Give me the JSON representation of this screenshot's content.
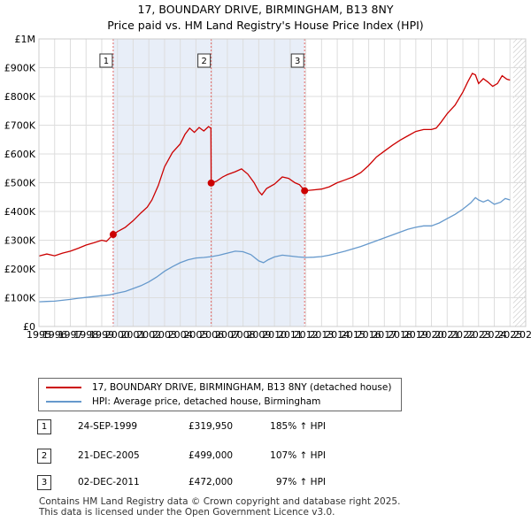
{
  "title_line1": "17, BOUNDARY DRIVE, BIRMINGHAM, B13 8NY",
  "title_line2": "Price paid vs. HM Land Registry's House Price Index (HPI)",
  "chart_data": {
    "type": "line",
    "xlim": [
      1995,
      2026
    ],
    "ylim": [
      0,
      1000000
    ],
    "x_ticks": [
      "1995",
      "1996",
      "1997",
      "1998",
      "1999",
      "2000",
      "2001",
      "2002",
      "2003",
      "2004",
      "2005",
      "2006",
      "2007",
      "2008",
      "2009",
      "2010",
      "2011",
      "2012",
      "2013",
      "2014",
      "2015",
      "2016",
      "2017",
      "2018",
      "2019",
      "2020",
      "2021",
      "2022",
      "2023",
      "2024",
      "2025",
      "2026"
    ],
    "y_ticks": [
      {
        "value": 0,
        "label": "£0"
      },
      {
        "value": 100000,
        "label": "£100K"
      },
      {
        "value": 200000,
        "label": "£200K"
      },
      {
        "value": 300000,
        "label": "£300K"
      },
      {
        "value": 400000,
        "label": "£400K"
      },
      {
        "value": 500000,
        "label": "£500K"
      },
      {
        "value": 600000,
        "label": "£600K"
      },
      {
        "value": 700000,
        "label": "£700K"
      },
      {
        "value": 800000,
        "label": "£800K"
      },
      {
        "value": 900000,
        "label": "£900K"
      },
      {
        "value": 1000000,
        "label": "£1M"
      }
    ],
    "grid": true,
    "shaded_region": [
      1999.73,
      2011.92
    ],
    "future_hatch_start": 2025.2,
    "series": [
      {
        "name": "17, BOUNDARY DRIVE, BIRMINGHAM, B13 8NY (detached house)",
        "color": "#cc0000",
        "points": [
          [
            1995.0,
            245000
          ],
          [
            1995.5,
            252000
          ],
          [
            1996.0,
            246000
          ],
          [
            1996.5,
            255000
          ],
          [
            1997.0,
            262000
          ],
          [
            1997.5,
            272000
          ],
          [
            1998.0,
            283000
          ],
          [
            1998.5,
            291000
          ],
          [
            1999.0,
            300000
          ],
          [
            1999.3,
            296000
          ],
          [
            1999.73,
            319950
          ],
          [
            2000.0,
            330000
          ],
          [
            2000.5,
            345000
          ],
          [
            2001.0,
            368000
          ],
          [
            2001.5,
            395000
          ],
          [
            2001.9,
            415000
          ],
          [
            2002.2,
            440000
          ],
          [
            2002.6,
            490000
          ],
          [
            2003.0,
            555000
          ],
          [
            2003.5,
            605000
          ],
          [
            2004.0,
            635000
          ],
          [
            2004.3,
            668000
          ],
          [
            2004.6,
            690000
          ],
          [
            2004.9,
            675000
          ],
          [
            2005.2,
            692000
          ],
          [
            2005.5,
            680000
          ],
          [
            2005.8,
            695000
          ],
          [
            2005.95,
            690000
          ],
          [
            2005.97,
            499000
          ],
          [
            2006.3,
            505000
          ],
          [
            2006.7,
            520000
          ],
          [
            2007.0,
            528000
          ],
          [
            2007.5,
            538000
          ],
          [
            2007.9,
            548000
          ],
          [
            2008.3,
            530000
          ],
          [
            2008.7,
            500000
          ],
          [
            2009.0,
            470000
          ],
          [
            2009.2,
            458000
          ],
          [
            2009.5,
            480000
          ],
          [
            2010.0,
            495000
          ],
          [
            2010.5,
            520000
          ],
          [
            2010.9,
            515000
          ],
          [
            2011.3,
            500000
          ],
          [
            2011.6,
            493000
          ],
          [
            2011.92,
            472000
          ],
          [
            2012.5,
            475000
          ],
          [
            2013.0,
            478000
          ],
          [
            2013.5,
            486000
          ],
          [
            2014.0,
            500000
          ],
          [
            2014.5,
            510000
          ],
          [
            2015.0,
            520000
          ],
          [
            2015.5,
            535000
          ],
          [
            2016.0,
            560000
          ],
          [
            2016.5,
            590000
          ],
          [
            2017.0,
            610000
          ],
          [
            2017.5,
            630000
          ],
          [
            2018.0,
            648000
          ],
          [
            2018.5,
            663000
          ],
          [
            2019.0,
            678000
          ],
          [
            2019.5,
            685000
          ],
          [
            2020.0,
            685000
          ],
          [
            2020.3,
            690000
          ],
          [
            2020.6,
            710000
          ],
          [
            2021.0,
            740000
          ],
          [
            2021.5,
            770000
          ],
          [
            2022.0,
            815000
          ],
          [
            2022.3,
            850000
          ],
          [
            2022.6,
            880000
          ],
          [
            2022.8,
            875000
          ],
          [
            2023.0,
            845000
          ],
          [
            2023.3,
            862000
          ],
          [
            2023.6,
            850000
          ],
          [
            2023.9,
            835000
          ],
          [
            2024.2,
            845000
          ],
          [
            2024.5,
            872000
          ],
          [
            2024.8,
            860000
          ],
          [
            2025.0,
            857000
          ]
        ]
      },
      {
        "name": "HPI: Average price, detached house, Birmingham",
        "color": "#6699cc",
        "points": [
          [
            1995.0,
            86000
          ],
          [
            1995.5,
            87000
          ],
          [
            1996.0,
            88000
          ],
          [
            1996.5,
            91000
          ],
          [
            1997.0,
            94000
          ],
          [
            1997.5,
            98000
          ],
          [
            1998.0,
            101000
          ],
          [
            1998.5,
            104000
          ],
          [
            1999.0,
            107000
          ],
          [
            1999.5,
            110000
          ],
          [
            2000.0,
            116000
          ],
          [
            2000.5,
            122000
          ],
          [
            2001.0,
            132000
          ],
          [
            2001.5,
            142000
          ],
          [
            2002.0,
            155000
          ],
          [
            2002.5,
            172000
          ],
          [
            2003.0,
            192000
          ],
          [
            2003.5,
            208000
          ],
          [
            2004.0,
            222000
          ],
          [
            2004.5,
            232000
          ],
          [
            2005.0,
            238000
          ],
          [
            2005.5,
            240000
          ],
          [
            2006.0,
            243000
          ],
          [
            2006.5,
            248000
          ],
          [
            2007.0,
            255000
          ],
          [
            2007.5,
            262000
          ],
          [
            2008.0,
            260000
          ],
          [
            2008.5,
            250000
          ],
          [
            2009.0,
            228000
          ],
          [
            2009.3,
            222000
          ],
          [
            2009.6,
            232000
          ],
          [
            2010.0,
            242000
          ],
          [
            2010.5,
            248000
          ],
          [
            2011.0,
            245000
          ],
          [
            2011.5,
            242000
          ],
          [
            2012.0,
            240000
          ],
          [
            2012.5,
            241000
          ],
          [
            2013.0,
            243000
          ],
          [
            2013.5,
            248000
          ],
          [
            2014.0,
            255000
          ],
          [
            2014.5,
            262000
          ],
          [
            2015.0,
            270000
          ],
          [
            2015.5,
            278000
          ],
          [
            2016.0,
            288000
          ],
          [
            2016.5,
            298000
          ],
          [
            2017.0,
            308000
          ],
          [
            2017.5,
            318000
          ],
          [
            2018.0,
            328000
          ],
          [
            2018.5,
            338000
          ],
          [
            2019.0,
            345000
          ],
          [
            2019.5,
            350000
          ],
          [
            2020.0,
            350000
          ],
          [
            2020.5,
            360000
          ],
          [
            2021.0,
            375000
          ],
          [
            2021.5,
            390000
          ],
          [
            2022.0,
            408000
          ],
          [
            2022.5,
            430000
          ],
          [
            2022.8,
            448000
          ],
          [
            2023.0,
            440000
          ],
          [
            2023.3,
            433000
          ],
          [
            2023.6,
            440000
          ],
          [
            2024.0,
            425000
          ],
          [
            2024.4,
            432000
          ],
          [
            2024.7,
            445000
          ],
          [
            2025.0,
            440000
          ]
        ]
      }
    ],
    "sales": [
      {
        "label": "1",
        "x": 1999.73,
        "value": 319950
      },
      {
        "label": "2",
        "x": 2005.97,
        "value": 499000
      },
      {
        "label": "3",
        "x": 2011.92,
        "value": 472000
      }
    ]
  },
  "legend": {
    "property_label": "17, BOUNDARY DRIVE, BIRMINGHAM, B13 8NY (detached house)",
    "hpi_label": "HPI: Average price, detached house, Birmingham",
    "property_color": "#cc0000",
    "hpi_color": "#6699cc"
  },
  "sales_table": [
    {
      "num": "1",
      "date": "24-SEP-1999",
      "price": "£319,950",
      "hpi": "185% ↑ HPI"
    },
    {
      "num": "2",
      "date": "21-DEC-2005",
      "price": "£499,000",
      "hpi": "107% ↑ HPI"
    },
    {
      "num": "3",
      "date": "02-DEC-2011",
      "price": "£472,000",
      "hpi": "97% ↑ HPI"
    }
  ],
  "footer_line1": "Contains HM Land Registry data © Crown copyright and database right 2025.",
  "footer_line2": "This data is licensed under the Open Government Licence v3.0."
}
